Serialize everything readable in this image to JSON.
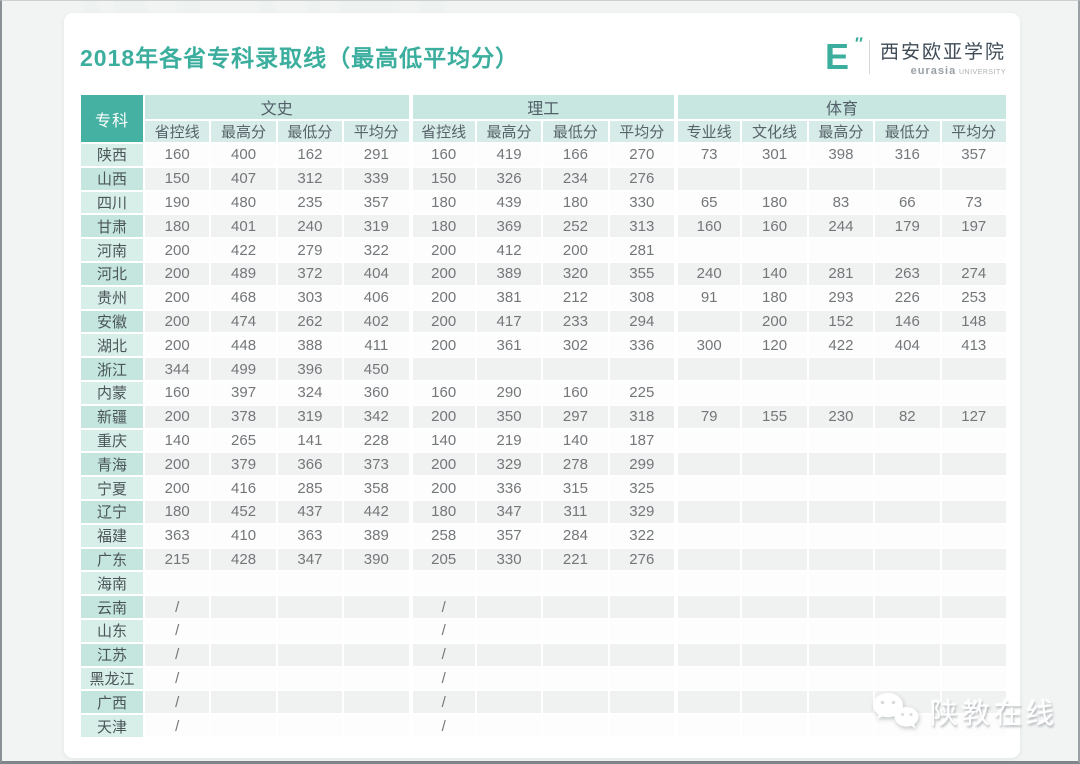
{
  "title": "2018年各省专科录取线（最高低平均分）",
  "logo": {
    "mark": "E",
    "prime": "″",
    "name": "西安欧亚学院",
    "sub_bold": "eurasia",
    "sub_small": "UNIVERSITY"
  },
  "colors": {
    "accent_teal": "#3bae9e",
    "header_teal": "#45b1a2",
    "group_header_bg": "#c9e7e1",
    "sub_header_bg": "#d7ece8",
    "province_odd_bg": "#d8efe9",
    "province_even_bg": "#c4e6df",
    "row_even_bg": "#f0f1f1",
    "data_text": "#73777a"
  },
  "chart_data": {
    "type": "table",
    "title": "2018年各省专科录取线（最高低平均分）",
    "corner_label": "专科",
    "column_groups": [
      {
        "label": "文史",
        "cols": [
          "省控线",
          "最高分",
          "最低分",
          "平均分"
        ]
      },
      {
        "label": "理工",
        "cols": [
          "省控线",
          "最高分",
          "最低分",
          "平均分"
        ]
      },
      {
        "label": "体育",
        "cols": [
          "专业线",
          "文化线",
          "最高分",
          "最低分",
          "平均分"
        ]
      }
    ],
    "rows": [
      {
        "province": "陕西",
        "values": [
          "160",
          "400",
          "162",
          "291",
          "160",
          "419",
          "166",
          "270",
          "73",
          "301",
          "398",
          "316",
          "357"
        ]
      },
      {
        "province": "山西",
        "values": [
          "150",
          "407",
          "312",
          "339",
          "150",
          "326",
          "234",
          "276",
          "",
          "",
          "",
          "",
          ""
        ]
      },
      {
        "province": "四川",
        "values": [
          "190",
          "480",
          "235",
          "357",
          "180",
          "439",
          "180",
          "330",
          "65",
          "180",
          "83",
          "66",
          "73"
        ]
      },
      {
        "province": "甘肃",
        "values": [
          "180",
          "401",
          "240",
          "319",
          "180",
          "369",
          "252",
          "313",
          "160",
          "160",
          "244",
          "179",
          "197"
        ]
      },
      {
        "province": "河南",
        "values": [
          "200",
          "422",
          "279",
          "322",
          "200",
          "412",
          "200",
          "281",
          "",
          "",
          "",
          "",
          ""
        ]
      },
      {
        "province": "河北",
        "values": [
          "200",
          "489",
          "372",
          "404",
          "200",
          "389",
          "320",
          "355",
          "240",
          "140",
          "281",
          "263",
          "274"
        ]
      },
      {
        "province": "贵州",
        "values": [
          "200",
          "468",
          "303",
          "406",
          "200",
          "381",
          "212",
          "308",
          "91",
          "180",
          "293",
          "226",
          "253"
        ]
      },
      {
        "province": "安徽",
        "values": [
          "200",
          "474",
          "262",
          "402",
          "200",
          "417",
          "233",
          "294",
          "",
          "200",
          "152",
          "146",
          "148"
        ]
      },
      {
        "province": "湖北",
        "values": [
          "200",
          "448",
          "388",
          "411",
          "200",
          "361",
          "302",
          "336",
          "300",
          "120",
          "422",
          "404",
          "413"
        ]
      },
      {
        "province": "浙江",
        "values": [
          "344",
          "499",
          "396",
          "450",
          "",
          "",
          "",
          "",
          "",
          "",
          "",
          "",
          ""
        ]
      },
      {
        "province": "内蒙",
        "values": [
          "160",
          "397",
          "324",
          "360",
          "160",
          "290",
          "160",
          "225",
          "",
          "",
          "",
          "",
          ""
        ]
      },
      {
        "province": "新疆",
        "values": [
          "200",
          "378",
          "319",
          "342",
          "200",
          "350",
          "297",
          "318",
          "79",
          "155",
          "230",
          "82",
          "127"
        ]
      },
      {
        "province": "重庆",
        "values": [
          "140",
          "265",
          "141",
          "228",
          "140",
          "219",
          "140",
          "187",
          "",
          "",
          "",
          "",
          ""
        ]
      },
      {
        "province": "青海",
        "values": [
          "200",
          "379",
          "366",
          "373",
          "200",
          "329",
          "278",
          "299",
          "",
          "",
          "",
          "",
          ""
        ]
      },
      {
        "province": "宁夏",
        "values": [
          "200",
          "416",
          "285",
          "358",
          "200",
          "336",
          "315",
          "325",
          "",
          "",
          "",
          "",
          ""
        ]
      },
      {
        "province": "辽宁",
        "values": [
          "180",
          "452",
          "437",
          "442",
          "180",
          "347",
          "311",
          "329",
          "",
          "",
          "",
          "",
          ""
        ]
      },
      {
        "province": "福建",
        "values": [
          "363",
          "410",
          "363",
          "389",
          "258",
          "357",
          "284",
          "322",
          "",
          "",
          "",
          "",
          ""
        ]
      },
      {
        "province": "广东",
        "values": [
          "215",
          "428",
          "347",
          "390",
          "205",
          "330",
          "221",
          "276",
          "",
          "",
          "",
          "",
          ""
        ]
      },
      {
        "province": "海南",
        "values": [
          "",
          "",
          "",
          "",
          "",
          "",
          "",
          "",
          "",
          "",
          "",
          "",
          ""
        ]
      },
      {
        "province": "云南",
        "values": [
          "/",
          "",
          "",
          "",
          "/",
          "",
          "",
          "",
          "",
          "",
          "",
          "",
          ""
        ]
      },
      {
        "province": "山东",
        "values": [
          "/",
          "",
          "",
          "",
          "/",
          "",
          "",
          "",
          "",
          "",
          "",
          "",
          ""
        ]
      },
      {
        "province": "江苏",
        "values": [
          "/",
          "",
          "",
          "",
          "/",
          "",
          "",
          "",
          "",
          "",
          "",
          "",
          ""
        ]
      },
      {
        "province": "黑龙江",
        "values": [
          "/",
          "",
          "",
          "",
          "/",
          "",
          "",
          "",
          "",
          "",
          "",
          "",
          ""
        ]
      },
      {
        "province": "广西",
        "values": [
          "/",
          "",
          "",
          "",
          "/",
          "",
          "",
          "",
          "",
          "",
          "",
          "",
          ""
        ]
      },
      {
        "province": "天津",
        "values": [
          "/",
          "",
          "",
          "",
          "/",
          "",
          "",
          "",
          "",
          "",
          "",
          "",
          ""
        ]
      }
    ]
  },
  "watermark": {
    "text": "陕教在线",
    "icon": "wechat-icon"
  }
}
